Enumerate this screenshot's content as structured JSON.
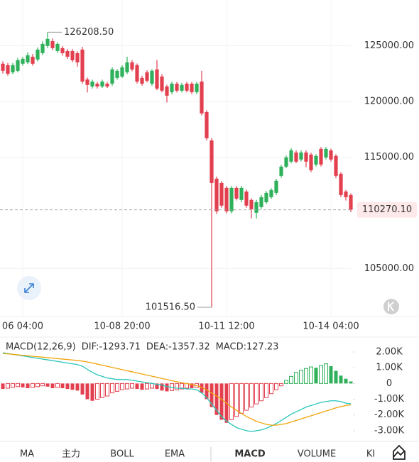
{
  "chart_data": [
    {
      "type": "candlestick",
      "categories": [
        null,
        null,
        null,
        null,
        "06 04:00",
        null,
        null,
        null,
        null,
        null,
        null,
        null,
        null,
        null,
        null,
        null,
        null,
        null,
        null,
        null,
        null,
        null,
        null,
        null,
        "10-08 20:00",
        null,
        null,
        null,
        null,
        null,
        null,
        null,
        null,
        null,
        null,
        null,
        null,
        null,
        null,
        null,
        null,
        null,
        null,
        null,
        null,
        "10-11 12:00",
        null,
        null,
        null,
        null,
        null,
        null,
        null,
        null,
        null,
        null,
        null,
        null,
        null,
        null,
        null,
        null,
        null,
        null,
        null,
        null,
        "10-14 04:00",
        null,
        null,
        null,
        null
      ],
      "open": [
        123380,
        123250,
        122610,
        122740,
        123380,
        123500,
        124010,
        123760,
        124330,
        124970,
        125410,
        124520,
        124780,
        124520,
        124520,
        124330,
        124650,
        121970,
        121340,
        121590,
        121340,
        121590,
        121590,
        122100,
        122230,
        122610,
        123500,
        123250,
        122100,
        122610,
        121590,
        122870,
        122230,
        121340,
        120830,
        121590,
        120960,
        121590,
        121590,
        120830,
        121780,
        119040,
        116500,
        113060,
        112670,
        112230,
        110130,
        112230,
        111150,
        111910,
        111150,
        110000,
        110510,
        110950,
        111400,
        111780,
        113310,
        114140,
        114590,
        115410,
        114780,
        115410,
        115220,
        114330,
        115730,
        114970,
        115600,
        115100,
        113500,
        111910,
        111590
      ],
      "high": [
        123600,
        123450,
        123450,
        123900,
        124000,
        124400,
        124250,
        124850,
        125400,
        126208.5,
        125650,
        125300,
        124950,
        124700,
        124700,
        124500,
        124900,
        122150,
        121950,
        121750,
        121950,
        121750,
        123060,
        122900,
        123250,
        124010,
        123700,
        123400,
        122300,
        122800,
        122900,
        123700,
        122450,
        121500,
        121750,
        121750,
        121650,
        121750,
        121750,
        121750,
        122740,
        119200,
        116700,
        113250,
        112850,
        112400,
        112400,
        112400,
        112400,
        112100,
        111300,
        111150,
        111600,
        111950,
        112200,
        113050,
        114300,
        115150,
        115800,
        115600,
        115600,
        115600,
        115400,
        115250,
        115900,
        115900,
        115750,
        115250,
        113650,
        112050,
        111750
      ],
      "low": [
        122500,
        122300,
        122450,
        122600,
        123200,
        123350,
        123200,
        123600,
        124150,
        124800,
        124600,
        124350,
        124100,
        123800,
        123500,
        123100,
        121600,
        120800,
        121150,
        121150,
        121200,
        121200,
        121400,
        121950,
        122100,
        122450,
        122700,
        121600,
        121400,
        121700,
        121400,
        121000,
        120800,
        119900,
        120650,
        120800,
        120800,
        120800,
        120650,
        120650,
        118750,
        116500,
        101516.5,
        109900,
        110450,
        109950,
        109950,
        111100,
        110950,
        110450,
        109490,
        109490,
        110350,
        110800,
        111250,
        111600,
        113150,
        114000,
        114450,
        114450,
        114600,
        114100,
        113650,
        114150,
        114150,
        114800,
        114600,
        113100,
        111400,
        111100,
        110050
      ],
      "close": [
        122740,
        122480,
        123250,
        123690,
        123820,
        124140,
        123380,
        124650,
        125160,
        125610,
        124780,
        125160,
        124330,
        124010,
        123690,
        123500,
        121780,
        121470,
        121780,
        121340,
        121780,
        121340,
        122870,
        122740,
        123060,
        123500,
        122870,
        121780,
        121590,
        121850,
        122740,
        121150,
        120960,
        120510,
        121590,
        120960,
        121470,
        120960,
        120830,
        121590,
        118920,
        116690,
        112670,
        110130,
        110640,
        110130,
        112230,
        111270,
        112230,
        110640,
        110320,
        110950,
        111400,
        111780,
        112040,
        112870,
        114140,
        114970,
        115600,
        114590,
        115410,
        114590,
        113820,
        115100,
        114330,
        115730,
        114780,
        113310,
        111590,
        111400,
        110270.1
      ],
      "up_color": "#2fb05a",
      "down_color": "#e2404f",
      "ylim": [
        100750,
        129100
      ],
      "yticks": [
        {
          "value": 105000,
          "label": "105000.00"
        },
        {
          "value": 115000,
          "label": "115000.00"
        },
        {
          "value": 120000,
          "label": "120000.00"
        },
        {
          "value": 125000,
          "label": "125000.00"
        }
      ],
      "grid": true,
      "annotations": [
        {
          "value": 126208.5,
          "label": "126208.50"
        },
        {
          "value": 101516.5,
          "label": "101516.50"
        }
      ],
      "last_price": {
        "value": 110270.1,
        "label": "110270.10"
      }
    },
    {
      "type": "macd",
      "legend": [
        {
          "text": "MACD(12,26,9)",
          "color": "#7a7a7a"
        },
        {
          "text": "DIF:-1293.71",
          "color": "#26c6b8"
        },
        {
          "text": "DEA:-1357.32",
          "color": "#f0a30a"
        },
        {
          "text": "MACD:127.23",
          "color": "#d23fd0"
        }
      ],
      "histogram": {
        "up_color": "#2fb05a",
        "down_color": "#e2404f",
        "values": [
          -350,
          -300,
          -250,
          -200,
          -250,
          -300,
          -250,
          -200,
          -150,
          -200,
          -300,
          -250,
          -300,
          -350,
          -400,
          -450,
          -700,
          -1000,
          -1100,
          -1000,
          -900,
          -800,
          -600,
          -500,
          -400,
          -350,
          -300,
          -350,
          -400,
          -350,
          -300,
          -350,
          -450,
          -500,
          -450,
          -400,
          -350,
          -300,
          -300,
          -250,
          -600,
          -1000,
          -1500,
          -2000,
          -2300,
          -2500,
          -2300,
          -2100,
          -1900,
          -1700,
          -1500,
          -1300,
          -1100,
          -900,
          -650,
          -400,
          -150,
          200,
          450,
          700,
          850,
          950,
          1050,
          1000,
          1150,
          1250,
          1100,
          800,
          500,
          300,
          127.23
        ]
      },
      "series": [
        {
          "color": "#26c6b8",
          "values": [
            1950,
            1900,
            1850,
            1800,
            1750,
            1700,
            1650,
            1600,
            1550,
            1500,
            1450,
            1400,
            1350,
            1300,
            1250,
            1200,
            1100,
            900,
            700,
            550,
            450,
            350,
            300,
            250,
            250,
            250,
            200,
            150,
            100,
            50,
            0,
            -50,
            -100,
            -200,
            -250,
            -300,
            -300,
            -350,
            -350,
            -400,
            -600,
            -900,
            -1300,
            -1700,
            -2100,
            -2400,
            -2600,
            -2800,
            -2900,
            -3000,
            -3050,
            -3000,
            -2950,
            -2850,
            -2700,
            -2550,
            -2350,
            -2150,
            -1950,
            -1800,
            -1650,
            -1500,
            -1400,
            -1300,
            -1200,
            -1150,
            -1100,
            -1100,
            -1150,
            -1250,
            -1293.71
          ]
        },
        {
          "color": "#f0a30a",
          "values": [
            1900,
            1880,
            1850,
            1820,
            1790,
            1760,
            1730,
            1700,
            1670,
            1640,
            1610,
            1580,
            1550,
            1520,
            1490,
            1460,
            1420,
            1370,
            1300,
            1230,
            1160,
            1090,
            1020,
            950,
            880,
            810,
            740,
            670,
            600,
            530,
            460,
            390,
            320,
            250,
            180,
            110,
            50,
            -10,
            -70,
            -130,
            -250,
            -400,
            -600,
            -800,
            -1000,
            -1250,
            -1500,
            -1700,
            -1900,
            -2100,
            -2250,
            -2400,
            -2500,
            -2600,
            -2650,
            -2650,
            -2600,
            -2550,
            -2450,
            -2350,
            -2250,
            -2150,
            -2050,
            -1950,
            -1850,
            -1750,
            -1650,
            -1550,
            -1470,
            -1400,
            -1357.32
          ]
        }
      ],
      "ylim": [
        -3590,
        2720
      ],
      "yticks": [
        {
          "value": -3000,
          "label": "-3.00K"
        },
        {
          "value": -2000,
          "label": "-2.00K"
        },
        {
          "value": -1000,
          "label": "-1.00K"
        },
        0,
        {
          "value": 1000,
          "label": "1.00K"
        },
        {
          "value": 2000,
          "label": "2.00K"
        }
      ]
    }
  ],
  "tabs": [
    "MA",
    "主力",
    "BOLL",
    "EMA",
    "MACD",
    "VOLUME",
    "KI"
  ],
  "active_tab": 4
}
